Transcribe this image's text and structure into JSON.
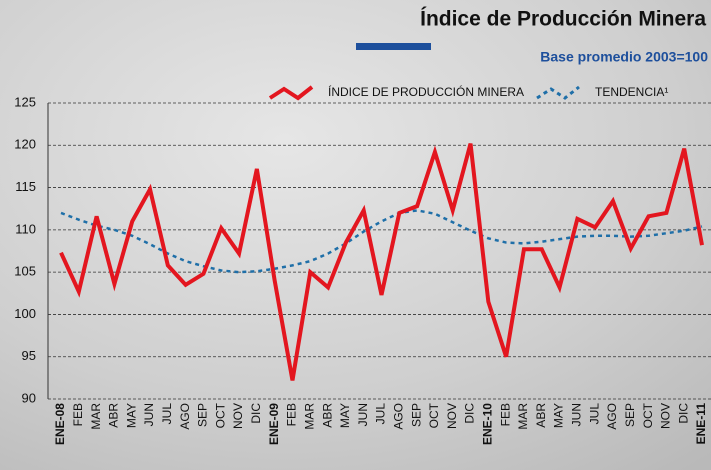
{
  "chart_data": {
    "type": "line",
    "title": "Índice de Producción Minera",
    "subtitle": "Base promedio 2003=100",
    "categories": [
      "ENE-08",
      "FEB",
      "MAR",
      "ABR",
      "MAY",
      "JUN",
      "JUL",
      "AGO",
      "SEP",
      "OCT",
      "NOV",
      "DIC",
      "ENE-09",
      "FEB",
      "MAR",
      "ABR",
      "MAY",
      "JUN",
      "JUL",
      "AGO",
      "SEP",
      "OCT",
      "NOV",
      "DIC",
      "ENE-10",
      "FEB",
      "MAR",
      "ABR",
      "MAY",
      "JUN",
      "JUL",
      "AGO",
      "SEP",
      "OCT",
      "NOV",
      "DIC",
      "ENE-11"
    ],
    "series": [
      {
        "name": "ÍNDICE DE PRODUCCIÓN MINERA",
        "color": "#e3161f",
        "values": [
          107.3,
          102.7,
          111.6,
          103.6,
          111,
          114.8,
          105.8,
          103.5,
          104.8,
          110.2,
          107.2,
          117.2,
          104,
          92.2,
          105,
          103.2,
          108.5,
          112.3,
          102.3,
          112,
          112.8,
          119.2,
          112.3,
          120.2,
          101.5,
          95,
          107.7,
          107.7,
          103.2,
          111.3,
          110.3,
          113.4,
          107.8,
          111.6,
          112,
          119.6,
          108.2
        ]
      },
      {
        "name": "TENDENCIA¹",
        "color": "#1f6fa8",
        "dashed": true,
        "values": [
          112,
          111.2,
          110.5,
          110,
          109.3,
          108.3,
          107.2,
          106.3,
          105.7,
          105.2,
          105,
          105.1,
          105.4,
          105.8,
          106.3,
          107.2,
          108.4,
          109.8,
          111,
          112,
          112.3,
          111.9,
          110.9,
          109.9,
          109,
          108.5,
          108.4,
          108.6,
          108.9,
          109.2,
          109.3,
          109.3,
          109.2,
          109.3,
          109.6,
          109.9,
          110.4
        ]
      }
    ],
    "ylim": [
      90,
      125
    ],
    "yticks": [
      90,
      95,
      100,
      105,
      110,
      115,
      120,
      125
    ],
    "grid": true
  }
}
